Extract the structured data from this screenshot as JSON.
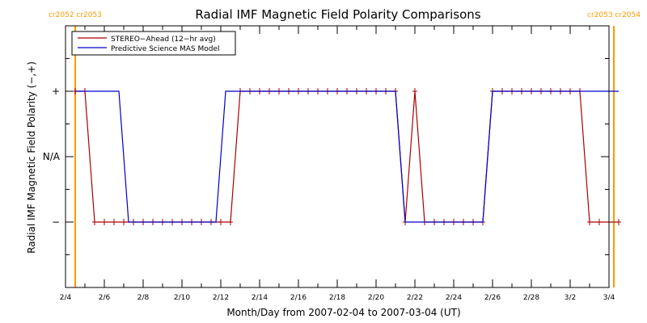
{
  "chart_data": {
    "type": "line",
    "title": "Radial IMF Magnetic Field Polarity Comparisons",
    "xlabel": "Month/Day from 2007-02-04 to 2007-03-04 (UT)",
    "ylabel": "Radial IMF Magnetic Field Polarity (−,+)",
    "xlim": [
      "2007-02-04",
      "2007-03-04"
    ],
    "ylim": [
      -2,
      2
    ],
    "x_ticks": [
      {
        "x": "2007-02-04",
        "label": "2/4"
      },
      {
        "x": "2007-02-06",
        "label": "2/6"
      },
      {
        "x": "2007-02-08",
        "label": "2/8"
      },
      {
        "x": "2007-02-10",
        "label": "2/10"
      },
      {
        "x": "2007-02-12",
        "label": "2/12"
      },
      {
        "x": "2007-02-14",
        "label": "2/14"
      },
      {
        "x": "2007-02-16",
        "label": "2/16"
      },
      {
        "x": "2007-02-18",
        "label": "2/18"
      },
      {
        "x": "2007-02-20",
        "label": "2/20"
      },
      {
        "x": "2007-02-22",
        "label": "2/22"
      },
      {
        "x": "2007-02-24",
        "label": "2/24"
      },
      {
        "x": "2007-02-26",
        "label": "2/26"
      },
      {
        "x": "2007-02-28",
        "label": "2/28"
      },
      {
        "x": "2007-03-02",
        "label": "3/2"
      },
      {
        "x": "2007-03-04",
        "label": "3/4"
      }
    ],
    "y_ticks": [
      {
        "y": 1,
        "label": "+"
      },
      {
        "y": 0,
        "label": "N/A"
      },
      {
        "y": -1,
        "label": "−"
      }
    ],
    "legend_position": "top-left",
    "series": [
      {
        "name": "STEREO−Ahead (12−hr avg)",
        "color": "#aa0000",
        "marker": "plus",
        "points": [
          [
            "2007-02-04 12:00",
            1
          ],
          [
            "2007-02-05 00:00",
            1
          ],
          [
            "2007-02-05 12:00",
            -1
          ],
          [
            "2007-02-06 00:00",
            -1
          ],
          [
            "2007-02-06 12:00",
            -1
          ],
          [
            "2007-02-07 00:00",
            -1
          ],
          [
            "2007-02-07 12:00",
            -1
          ],
          [
            "2007-02-08 00:00",
            -1
          ],
          [
            "2007-02-08 12:00",
            -1
          ],
          [
            "2007-02-09 00:00",
            -1
          ],
          [
            "2007-02-09 12:00",
            -1
          ],
          [
            "2007-02-10 00:00",
            -1
          ],
          [
            "2007-02-10 12:00",
            -1
          ],
          [
            "2007-02-11 00:00",
            -1
          ],
          [
            "2007-02-11 12:00",
            -1
          ],
          [
            "2007-02-12 00:00",
            -1
          ],
          [
            "2007-02-12 12:00",
            -1
          ],
          [
            "2007-02-13 00:00",
            1
          ],
          [
            "2007-02-13 12:00",
            1
          ],
          [
            "2007-02-14 00:00",
            1
          ],
          [
            "2007-02-14 12:00",
            1
          ],
          [
            "2007-02-15 00:00",
            1
          ],
          [
            "2007-02-15 12:00",
            1
          ],
          [
            "2007-02-16 00:00",
            1
          ],
          [
            "2007-02-16 12:00",
            1
          ],
          [
            "2007-02-17 00:00",
            1
          ],
          [
            "2007-02-17 12:00",
            1
          ],
          [
            "2007-02-18 00:00",
            1
          ],
          [
            "2007-02-18 12:00",
            1
          ],
          [
            "2007-02-19 00:00",
            1
          ],
          [
            "2007-02-19 12:00",
            1
          ],
          [
            "2007-02-20 00:00",
            1
          ],
          [
            "2007-02-20 12:00",
            1
          ],
          [
            "2007-02-21 00:00",
            1
          ],
          [
            "2007-02-21 12:00",
            -1
          ],
          [
            "2007-02-22 00:00",
            1
          ],
          [
            "2007-02-22 12:00",
            -1
          ],
          [
            "2007-02-23 00:00",
            -1
          ],
          [
            "2007-02-23 12:00",
            -1
          ],
          [
            "2007-02-24 00:00",
            -1
          ],
          [
            "2007-02-24 12:00",
            -1
          ],
          [
            "2007-02-25 00:00",
            -1
          ],
          [
            "2007-02-25 12:00",
            -1
          ],
          [
            "2007-02-26 00:00",
            1
          ],
          [
            "2007-02-26 12:00",
            1
          ],
          [
            "2007-02-27 00:00",
            1
          ],
          [
            "2007-02-27 12:00",
            1
          ],
          [
            "2007-02-28 00:00",
            1
          ],
          [
            "2007-02-28 12:00",
            1
          ],
          [
            "2007-03-01 00:00",
            1
          ],
          [
            "2007-03-01 12:00",
            1
          ],
          [
            "2007-03-02 00:00",
            1
          ],
          [
            "2007-03-02 12:00",
            1
          ],
          [
            "2007-03-03 00:00",
            -1
          ],
          [
            "2007-03-03 12:00",
            -1
          ],
          [
            "2007-03-04 00:00",
            -1
          ],
          [
            "2007-03-04 12:00",
            -1
          ]
        ]
      },
      {
        "name": "Predictive Science MAS Model",
        "color": "#0000cc",
        "marker": "none",
        "points": [
          [
            "2007-02-04 12:00",
            1
          ],
          [
            "2007-02-06 18:00",
            1
          ],
          [
            "2007-02-07 06:00",
            -1
          ],
          [
            "2007-02-11 18:00",
            -1
          ],
          [
            "2007-02-12 06:00",
            1
          ],
          [
            "2007-02-21 00:00",
            1
          ],
          [
            "2007-02-21 12:00",
            -1
          ],
          [
            "2007-02-25 12:00",
            -1
          ],
          [
            "2007-02-26 00:00",
            1
          ],
          [
            "2007-03-04 12:00",
            1
          ]
        ]
      }
    ],
    "carrington_markers": [
      {
        "x": "2007-02-04 12:00",
        "label": "cr2052 cr2053",
        "color": "#ff9900"
      },
      {
        "x": "2007-03-04 06:00",
        "label": "cr2053 cr2054",
        "color": "#ff9900"
      }
    ]
  }
}
